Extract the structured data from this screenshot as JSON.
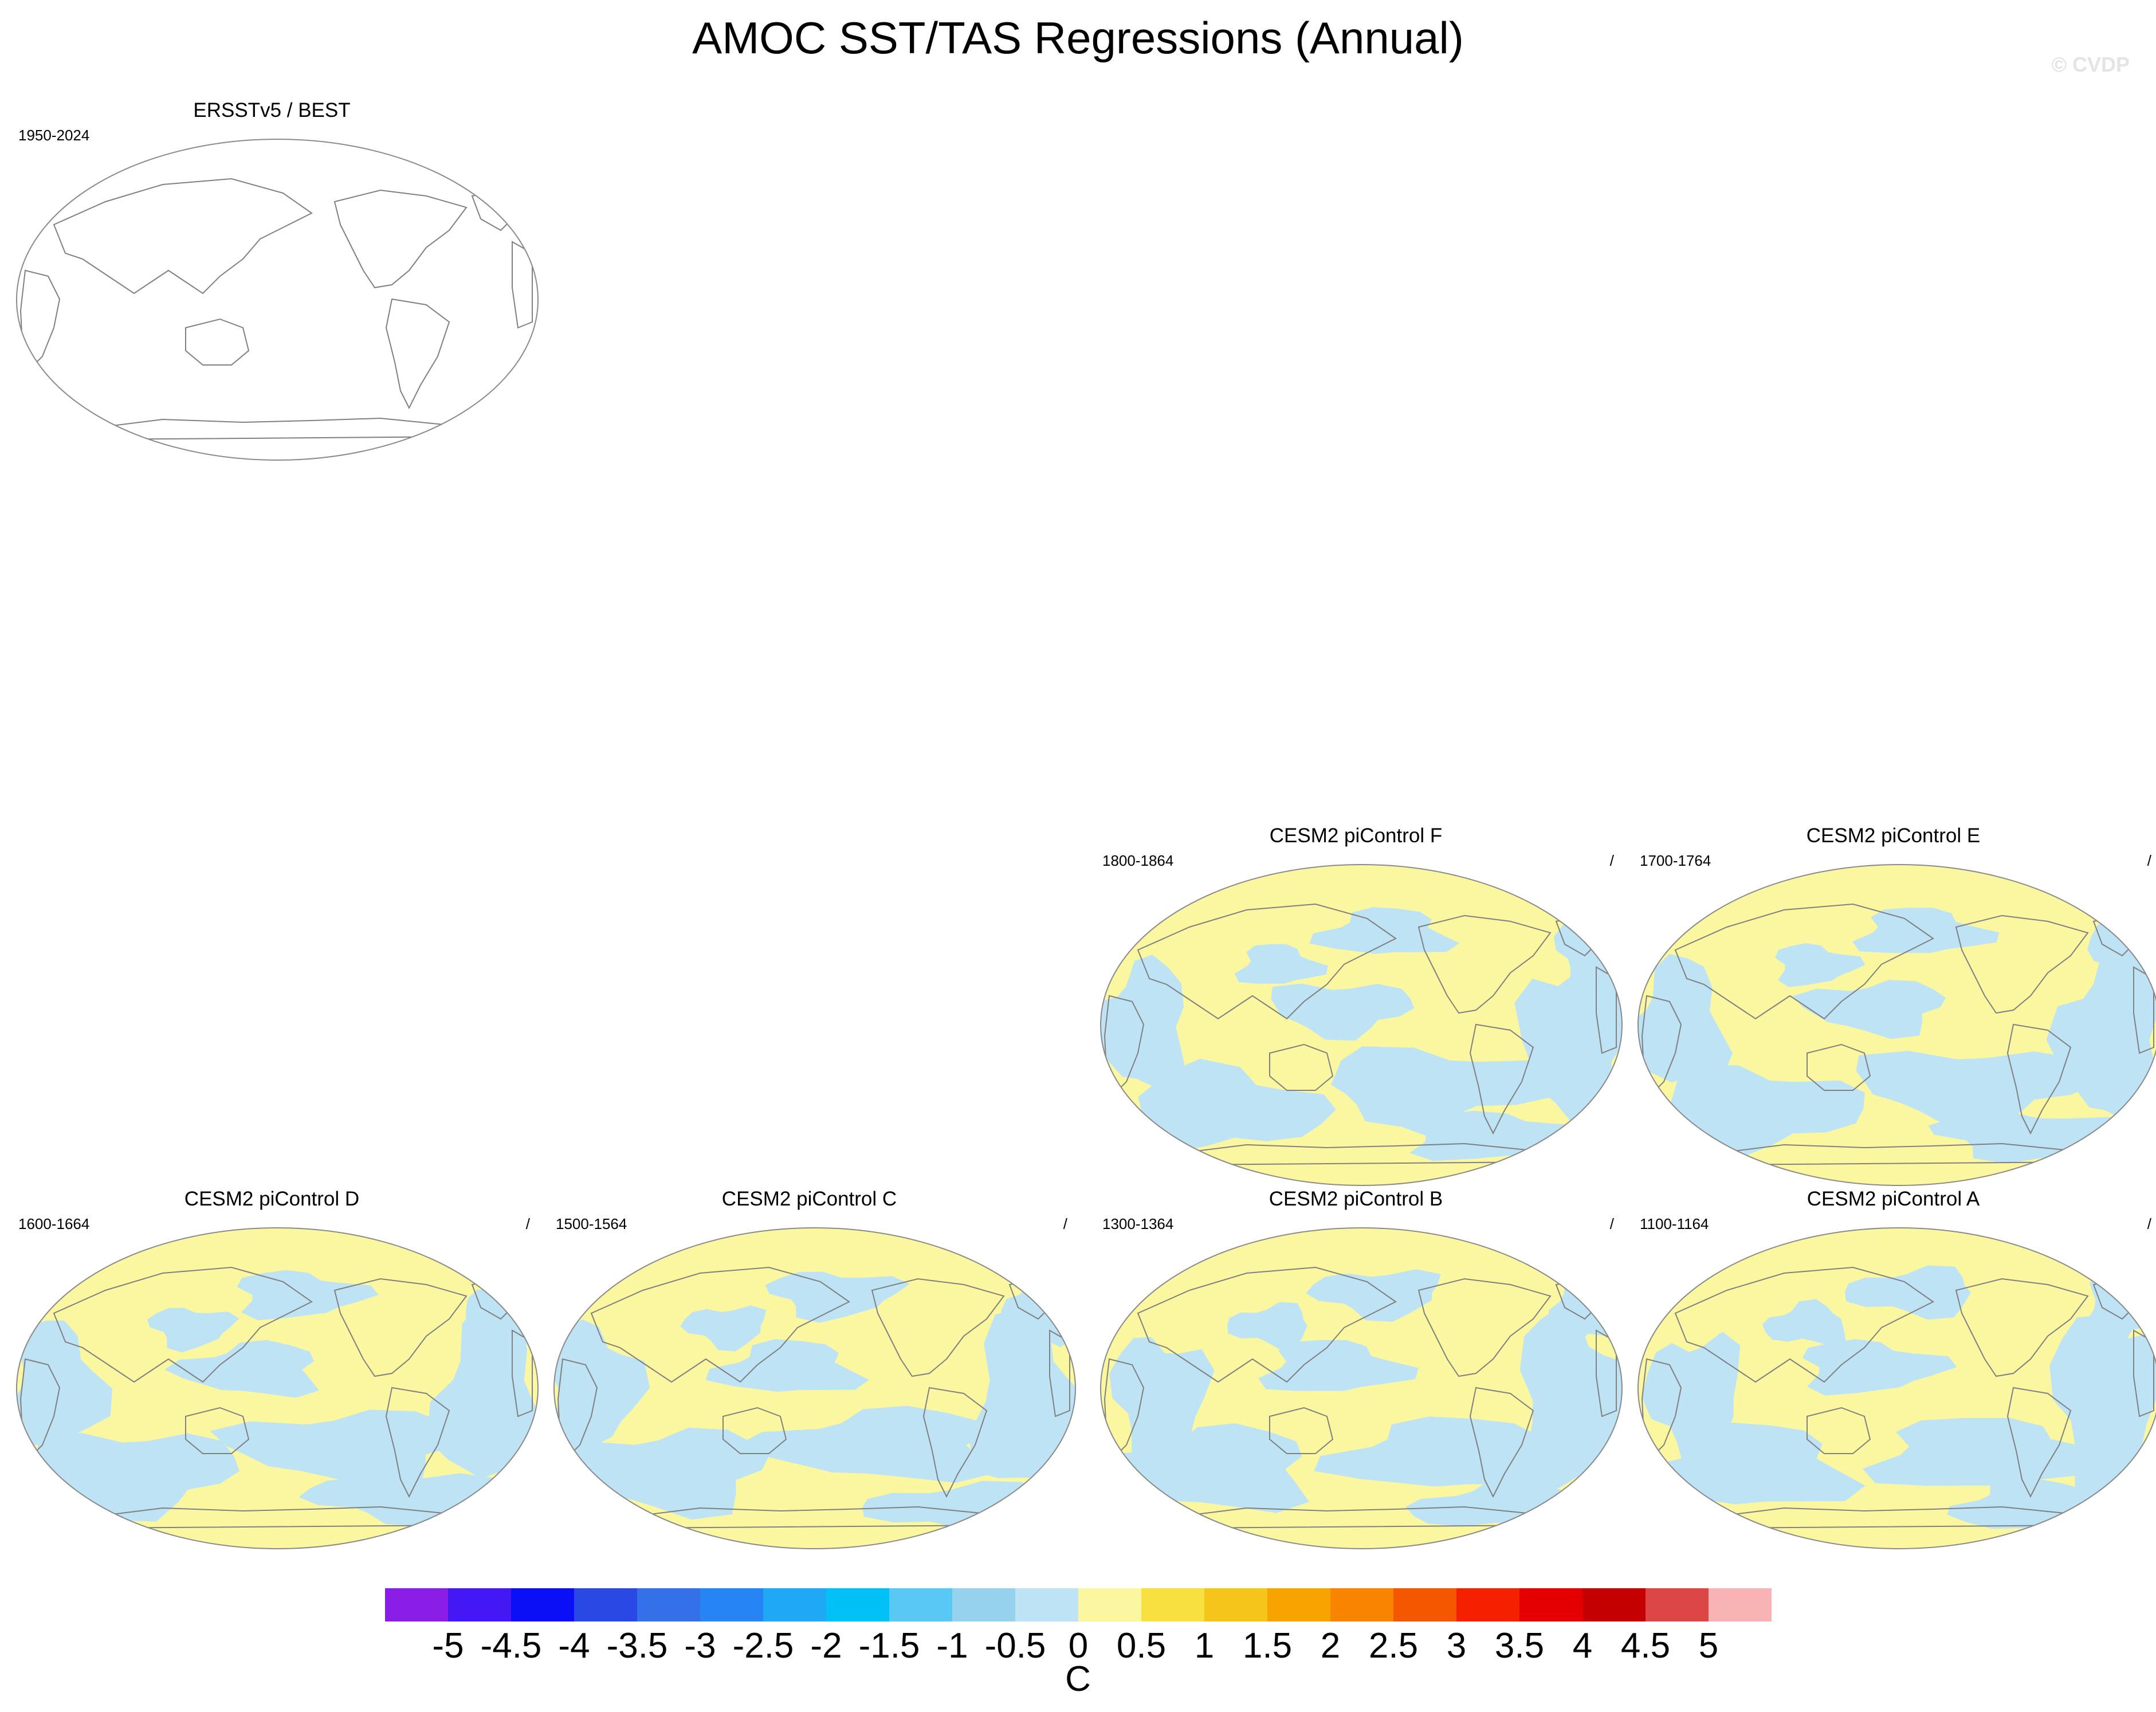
{
  "figure": {
    "title": "AMOC SST/TAS Regressions (Annual)",
    "watermark": "© CVDP"
  },
  "panels": [
    {
      "title": "ERSSTv5 / BEST",
      "years": "1950-2024",
      "slash": "",
      "filled": false
    },
    {
      "title": "CESM2 piControl F",
      "years": "1800-1864",
      "slash": "/",
      "filled": true
    },
    {
      "title": "CESM2 piControl E",
      "years": "1700-1764",
      "slash": "/",
      "filled": true
    },
    {
      "title": "CESM2 piControl D",
      "years": "1600-1664",
      "slash": "/",
      "filled": true
    },
    {
      "title": "CESM2 piControl C",
      "years": "1500-1564",
      "slash": "/",
      "filled": true
    },
    {
      "title": "CESM2 piControl B",
      "years": "1300-1364",
      "slash": "/",
      "filled": true
    },
    {
      "title": "CESM2 piControl A",
      "years": "1100-1164",
      "slash": "/",
      "filled": true
    }
  ],
  "colorbar": {
    "labels": [
      "-5",
      "-4.5",
      "-4",
      "-3.5",
      "-3",
      "-2.5",
      "-2",
      "-1.5",
      "-1",
      "-0.5",
      "0",
      "0.5",
      "1",
      "1.5",
      "2",
      "2.5",
      "3",
      "3.5",
      "4",
      "4.5",
      "5"
    ],
    "colors": [
      "#8a1ee6",
      "#4418f5",
      "#0a0ff5",
      "#2a48e4",
      "#3470e8",
      "#2684f5",
      "#1ea8f5",
      "#00c0f5",
      "#5ac8f5",
      "#96d2ee",
      "#bde3f5",
      "#fbf7a0",
      "#f8e040",
      "#f6c51c",
      "#f8a400",
      "#f88400",
      "#f55700",
      "#f52000",
      "#e40000",
      "#c40000",
      "#dc4646",
      "#f8b4b4"
    ],
    "units": "C"
  },
  "map_colors": {
    "negative_small": "#bde3f5",
    "positive_small": "#fbf7a0",
    "coast": "#808080"
  }
}
